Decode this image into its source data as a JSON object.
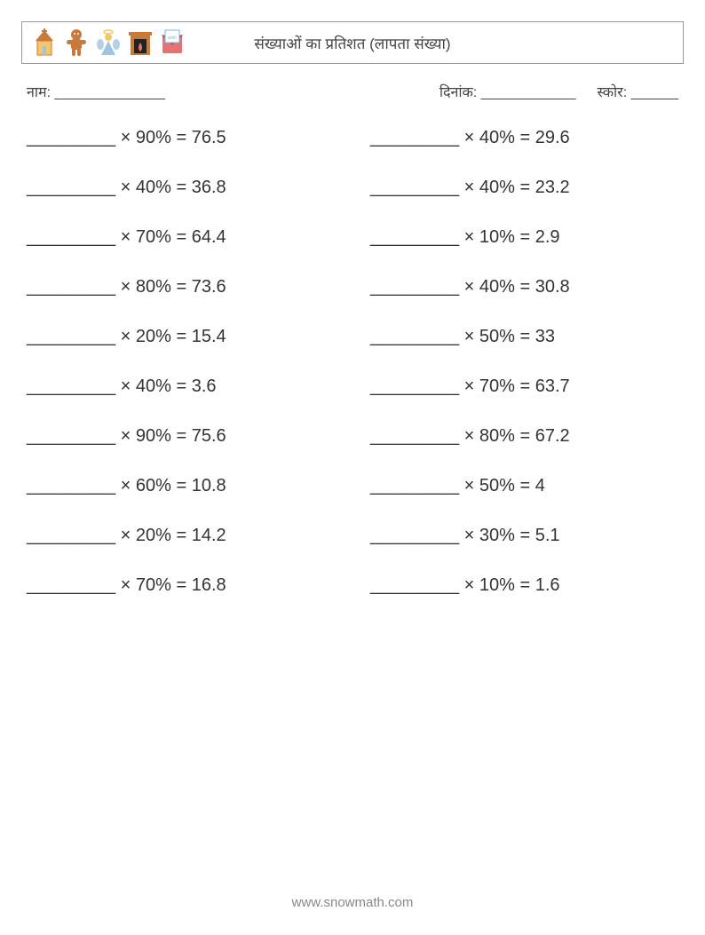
{
  "title": "संख्याओं का प्रतिशत (लापता संख्या)",
  "icons": [
    {
      "name": "church-icon",
      "colors": [
        "#f4c869",
        "#c97a3a",
        "#9fc6e0"
      ]
    },
    {
      "name": "gingerbread-icon",
      "colors": [
        "#c97a3a",
        "#f0b060"
      ]
    },
    {
      "name": "angel-icon",
      "colors": [
        "#f4c869",
        "#9fc6e0",
        "#e57373"
      ]
    },
    {
      "name": "fireplace-icon",
      "colors": [
        "#c97a3a",
        "#f4c869",
        "#e57373"
      ]
    },
    {
      "name": "wishlist-icon",
      "colors": [
        "#e57373",
        "#6db8e8",
        "#ffffff"
      ]
    }
  ],
  "info": {
    "name_label": "नाम:",
    "name_blank": "______________",
    "date_label": "दिनांक:",
    "date_blank": "____________",
    "score_label": "स्कोर:",
    "score_blank": "______"
  },
  "blank": "_________",
  "problems_style": {
    "font_size": 20,
    "text_color": "#333333",
    "columns": 2,
    "row_gap": 33
  },
  "problems": [
    {
      "percent": "90%",
      "result": "76.5"
    },
    {
      "percent": "40%",
      "result": "29.6"
    },
    {
      "percent": "40%",
      "result": "36.8"
    },
    {
      "percent": "40%",
      "result": "23.2"
    },
    {
      "percent": "70%",
      "result": "64.4"
    },
    {
      "percent": "10%",
      "result": "2.9"
    },
    {
      "percent": "80%",
      "result": "73.6"
    },
    {
      "percent": "40%",
      "result": "30.8"
    },
    {
      "percent": "20%",
      "result": "15.4"
    },
    {
      "percent": "50%",
      "result": "33"
    },
    {
      "percent": "40%",
      "result": "3.6"
    },
    {
      "percent": "70%",
      "result": "63.7"
    },
    {
      "percent": "90%",
      "result": "75.6"
    },
    {
      "percent": "80%",
      "result": "67.2"
    },
    {
      "percent": "60%",
      "result": "10.8"
    },
    {
      "percent": "50%",
      "result": "4"
    },
    {
      "percent": "20%",
      "result": "14.2"
    },
    {
      "percent": "30%",
      "result": "5.1"
    },
    {
      "percent": "70%",
      "result": "16.8"
    },
    {
      "percent": "10%",
      "result": "1.6"
    }
  ],
  "footer": "www.snowmath.com"
}
